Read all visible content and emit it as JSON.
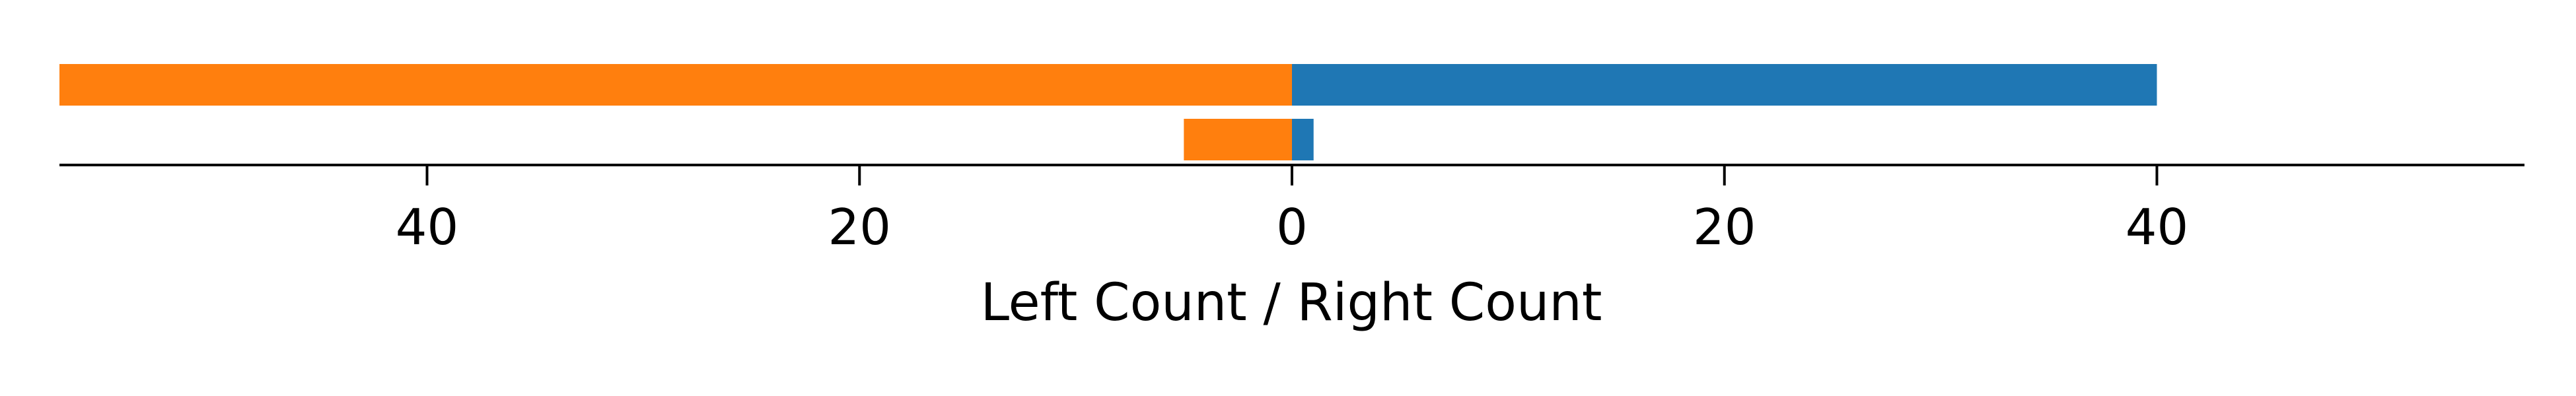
{
  "chart_data": {
    "type": "bar",
    "orientation": "horizontal",
    "diverging": true,
    "xlabel": "Left Count / Right Count",
    "xlim": [
      -57,
      57
    ],
    "xticks": [
      -40,
      -20,
      0,
      20,
      40
    ],
    "xtick_labels": [
      "40",
      "20",
      "0",
      "20",
      "40"
    ],
    "rows": [
      {
        "left": 57,
        "right": 40
      },
      {
        "left": 5,
        "right": 1
      }
    ],
    "colors": {
      "left": "#ff7f0e",
      "right": "#1f77b4"
    },
    "grid": false,
    "legend": false
  }
}
